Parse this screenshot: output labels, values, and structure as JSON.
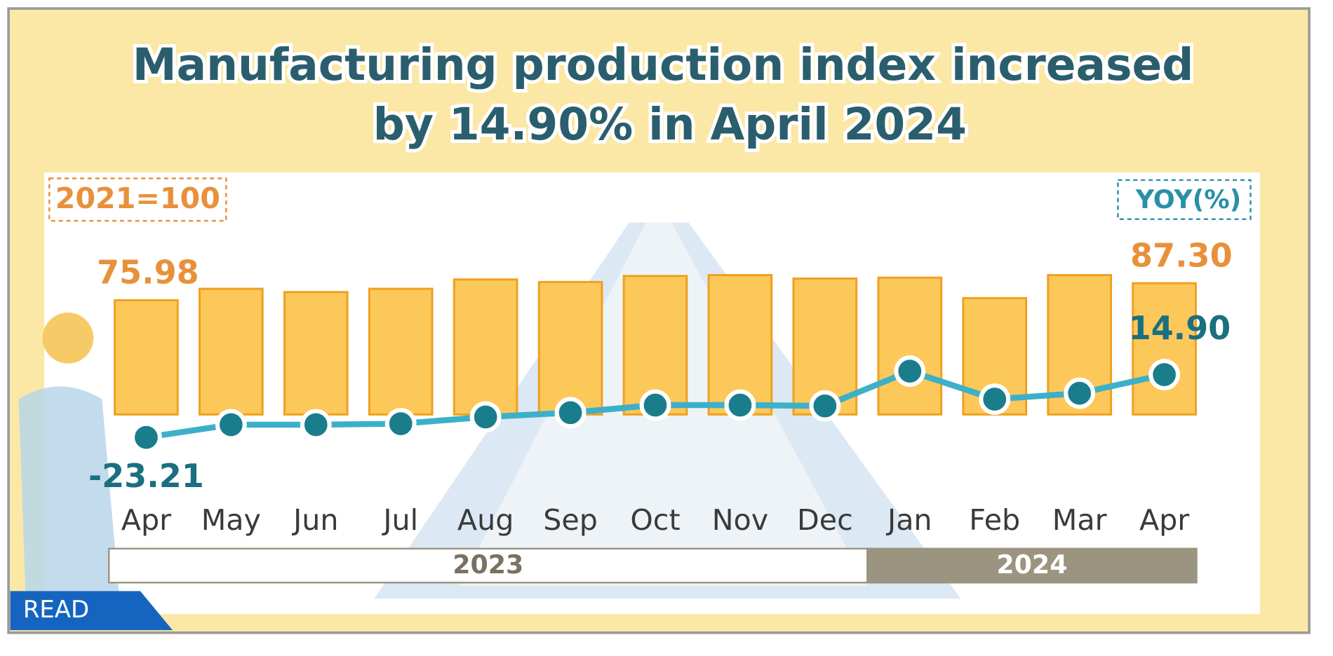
{
  "chart_data": {
    "type": "bar-line",
    "title": [
      "Manufacturing production index increased",
      "by 14.90% in  April  2024"
    ],
    "bar_unit_label": "2021=100",
    "line_unit_label": "YOY(%)",
    "categories": [
      "Apr",
      "May",
      "Jun",
      "Jul",
      "Aug",
      "Sep",
      "Oct",
      "Nov",
      "Dec",
      "Jan",
      "Feb",
      "Mar",
      "Apr"
    ],
    "year_groups": [
      {
        "label": "2023",
        "count": 9
      },
      {
        "label": "2024",
        "count": 4
      }
    ],
    "series": [
      {
        "name": "2021=100",
        "type": "bar",
        "color": "#fcc85a",
        "values": [
          75.98,
          83.6,
          81.4,
          83.6,
          89.8,
          88.1,
          92.1,
          92.7,
          90.4,
          91.0,
          77.4,
          92.7,
          87.3
        ],
        "value_labels": [
          "75.98",
          null,
          null,
          null,
          null,
          null,
          null,
          null,
          null,
          null,
          null,
          null,
          "87.30"
        ]
      },
      {
        "name": "YOY(%)",
        "type": "line",
        "color": "#3cb0c9",
        "axis": "y2",
        "values": [
          -23.21,
          -15.5,
          -15.5,
          -14.9,
          -10.8,
          -8.2,
          -3.6,
          -3.6,
          -4.1,
          17.0,
          0.0,
          3.6,
          14.9
        ],
        "value_labels": [
          "-23.21",
          null,
          null,
          null,
          null,
          null,
          null,
          null,
          null,
          null,
          null,
          null,
          "14.90"
        ]
      }
    ],
    "badge": "READ"
  }
}
